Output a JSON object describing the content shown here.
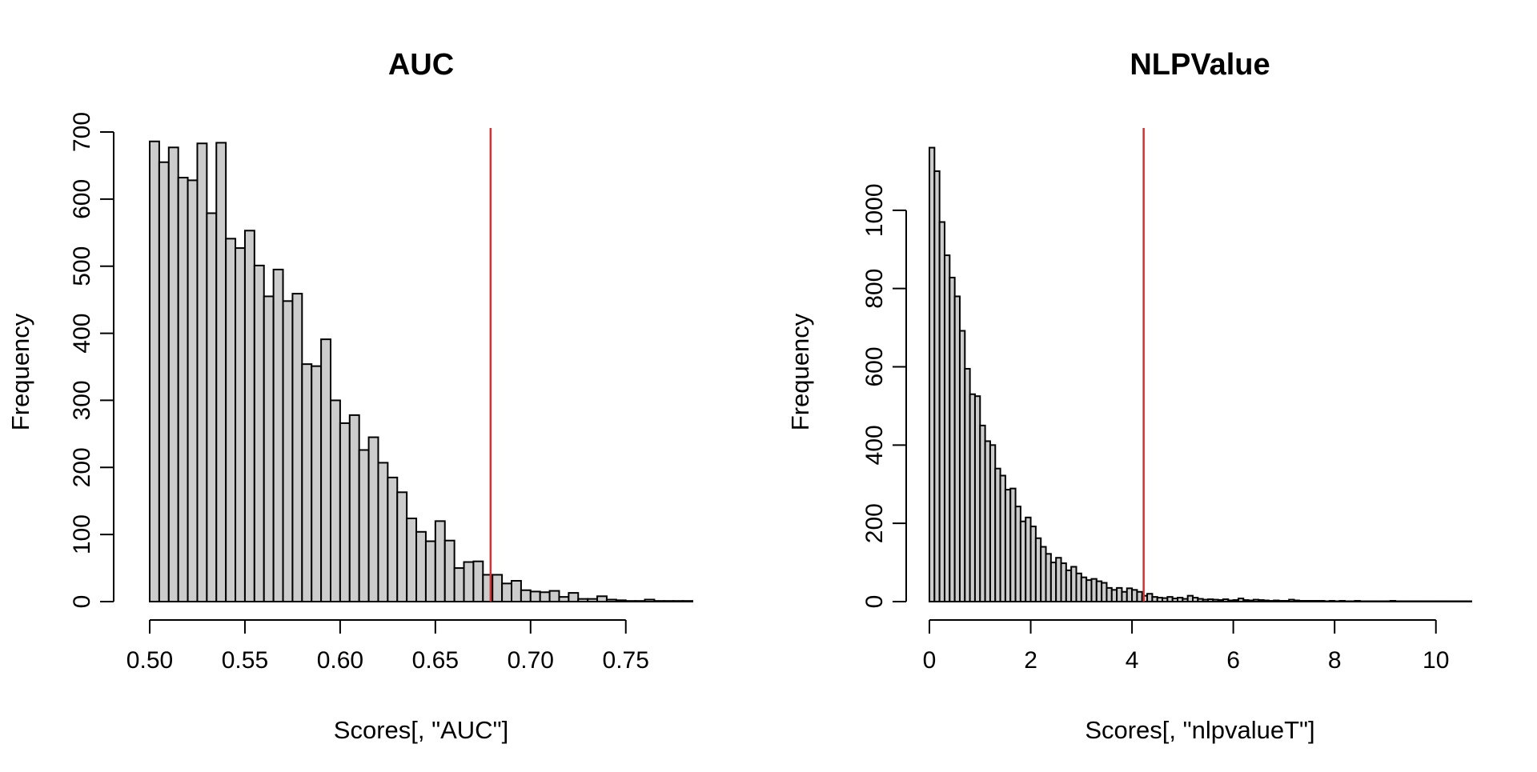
{
  "chart_data": [
    {
      "type": "bar",
      "title": "AUC",
      "xlabel": "Scores[, \"AUC\"]",
      "ylabel": "Frequency",
      "xlim": [
        0.5,
        0.785
      ],
      "ylim": [
        0,
        700
      ],
      "xticks": [
        0.5,
        0.55,
        0.6,
        0.65,
        0.7,
        0.75
      ],
      "xtick_labels": [
        "0.50",
        "0.55",
        "0.60",
        "0.65",
        "0.70",
        "0.75"
      ],
      "yticks": [
        0,
        100,
        200,
        300,
        400,
        500,
        600,
        700
      ],
      "ytick_labels": [
        "0",
        "100",
        "200",
        "300",
        "400",
        "500",
        "600",
        "700"
      ],
      "bin_start": 0.5,
      "bin_width": 0.005,
      "values": [
        686,
        655,
        677,
        632,
        628,
        683,
        579,
        684,
        541,
        527,
        553,
        501,
        455,
        495,
        448,
        459,
        354,
        351,
        391,
        300,
        266,
        278,
        226,
        245,
        207,
        185,
        163,
        124,
        104,
        90,
        120,
        91,
        50,
        59,
        60,
        40,
        40,
        27,
        31,
        17,
        15,
        14,
        16,
        7,
        13,
        4,
        4,
        8,
        3,
        2,
        1,
        1,
        3,
        1,
        1,
        1,
        1
      ],
      "reference_line": {
        "x": 0.679,
        "color": "#e8282b"
      },
      "grid": false,
      "legend": "none"
    },
    {
      "type": "bar",
      "title": "NLPValue",
      "xlabel": "Scores[, \"nlpvalueT\"]",
      "ylabel": "Frequency",
      "xlim": [
        0,
        10.7
      ],
      "ylim": [
        0,
        1200
      ],
      "xticks": [
        0,
        2,
        4,
        6,
        8,
        10
      ],
      "xtick_labels": [
        "0",
        "2",
        "4",
        "6",
        "8",
        "10"
      ],
      "yticks": [
        0,
        200,
        400,
        600,
        800,
        1000
      ],
      "ytick_labels": [
        "0",
        "200",
        "400",
        "600",
        "800",
        "1000"
      ],
      "bin_start": 0,
      "bin_width": 0.1,
      "values": [
        1160,
        1100,
        970,
        885,
        828,
        780,
        692,
        595,
        530,
        525,
        450,
        410,
        400,
        340,
        322,
        286,
        289,
        243,
        205,
        215,
        192,
        162,
        140,
        122,
        100,
        112,
        98,
        80,
        89,
        72,
        62,
        55,
        58,
        52,
        48,
        35,
        30,
        35,
        25,
        34,
        30,
        25,
        15,
        20,
        12,
        10,
        9,
        12,
        8,
        10,
        7,
        15,
        10,
        7,
        5,
        6,
        5,
        4,
        6,
        3,
        4,
        8,
        4,
        3,
        5,
        4,
        3,
        2,
        3,
        2,
        2,
        5,
        3,
        2,
        2,
        2,
        2,
        2,
        1,
        2,
        1,
        2,
        1,
        1,
        2,
        1,
        1,
        1,
        1,
        1,
        1,
        2,
        1,
        1,
        1,
        1,
        1,
        1,
        1,
        1,
        1,
        1,
        1,
        1,
        1,
        1,
        1
      ],
      "reference_line": {
        "x": 4.23,
        "color": "#e8282b"
      },
      "grid": false,
      "legend": "none"
    }
  ]
}
